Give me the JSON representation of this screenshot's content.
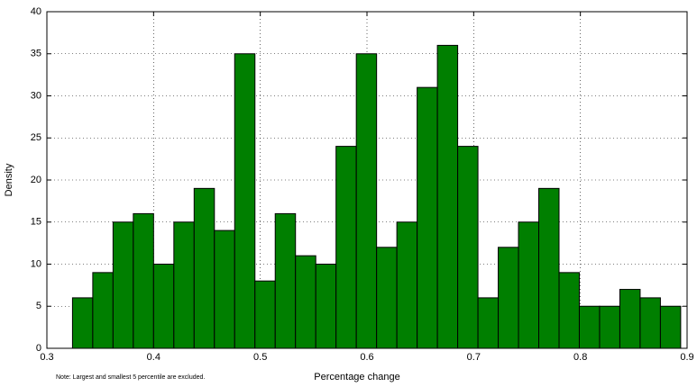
{
  "chart_data": {
    "type": "histogram",
    "xlabel": "Percentage change",
    "ylabel": "Density",
    "note": "Note: Largest and smallest 5 percentile are excluded.",
    "bins": [
      0.324,
      0.343,
      0.362,
      0.381,
      0.4,
      0.419,
      0.438,
      0.457,
      0.476,
      0.495,
      0.514,
      0.533,
      0.552,
      0.571,
      0.59,
      0.609,
      0.628,
      0.647,
      0.666,
      0.685,
      0.704,
      0.723,
      0.742,
      0.761,
      0.78,
      0.799,
      0.818,
      0.837,
      0.856,
      0.875,
      0.894
    ],
    "values": [
      6,
      9,
      15,
      16,
      10,
      15,
      19,
      14,
      35,
      8,
      16,
      11,
      10,
      24,
      35,
      12,
      15,
      31,
      36,
      24,
      6,
      12,
      15,
      19,
      9,
      5,
      5,
      7,
      6,
      5
    ],
    "color": "#007f00",
    "xlim": [
      0.3,
      0.9
    ],
    "xticks": [
      0.3,
      0.4,
      0.5,
      0.6,
      0.7,
      0.8,
      0.9
    ],
    "ylim": [
      0,
      40
    ],
    "yticks": [
      0,
      5,
      10,
      15,
      20,
      25,
      30,
      35,
      40
    ],
    "grid": true
  }
}
